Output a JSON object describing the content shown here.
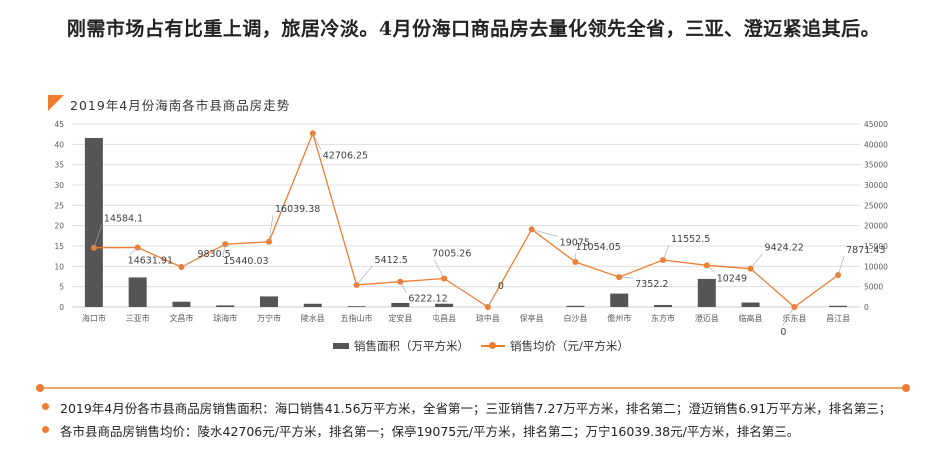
{
  "headline": "刚需市场占有比重上调，旅居冷淡。4月份海口商品房去量化领先全省，三亚、澄迈紧追其后。",
  "colors": {
    "accent": "#ee7d32",
    "bar": "#555555",
    "grid": "#d9d9d9"
  },
  "chart_data": {
    "type": "bar",
    "title": "2019年4月份海南各市县商品房走势",
    "categories": [
      "海口市",
      "三亚市",
      "文昌市",
      "琼海市",
      "万宁市",
      "陵水县",
      "五指山市",
      "定安县",
      "屯昌县",
      "琼中县",
      "保亭县",
      "白沙县",
      "儋州市",
      "东方市",
      "澄迈县",
      "临高县",
      "乐东县",
      "昌江县"
    ],
    "y_left": {
      "min": 0,
      "max": 45,
      "ticks": [
        0,
        5,
        10,
        15,
        20,
        25,
        30,
        35,
        40,
        45
      ]
    },
    "y_right": {
      "min": 0,
      "max": 45000,
      "ticks": [
        0,
        5000,
        10000,
        15000,
        20000,
        25000,
        30000,
        35000,
        40000,
        45000
      ]
    },
    "series": [
      {
        "name": "销售面积（万平方米）",
        "type": "bar",
        "axis": "left",
        "values": [
          41.56,
          7.27,
          1.3,
          0.4,
          2.6,
          0.8,
          0.1,
          1.0,
          0.8,
          0.0,
          0.0,
          0.3,
          3.3,
          0.5,
          6.91,
          1.1,
          0.0,
          0.3
        ]
      },
      {
        "name": "销售均价（元/平方米）",
        "type": "line",
        "axis": "right",
        "values": [
          14584.1,
          14631.91,
          9830.5,
          15440.03,
          16039.38,
          42706.25,
          5412.5,
          6222.12,
          7005.26,
          0,
          19075,
          11054.05,
          7352.2,
          11552.5,
          10249,
          9424.22,
          0,
          7871.43
        ],
        "labels": [
          "14584.1",
          "14631.91",
          "9830.5",
          "15440.03",
          "16039.38",
          "42706.25",
          "5412.5",
          "6222.12",
          "7005.26",
          "0",
          "19075",
          "11054.05",
          "7352.2",
          "11552.5",
          "10249",
          "9424.22",
          "0",
          "7871.43"
        ]
      }
    ],
    "legend": "bottom"
  },
  "notes": [
    "2019年4月份各市县商品房销售面积：海口销售41.56万平方米，全省第一；三亚销售7.27万平方米，排名第二；澄迈销售6.91万平方米，排名第三；",
    "各市县商品房销售均价：陵水42706元/平方米，排名第一；保亭19075元/平方米，排名第二；万宁16039.38元/平方米，排名第三。"
  ]
}
